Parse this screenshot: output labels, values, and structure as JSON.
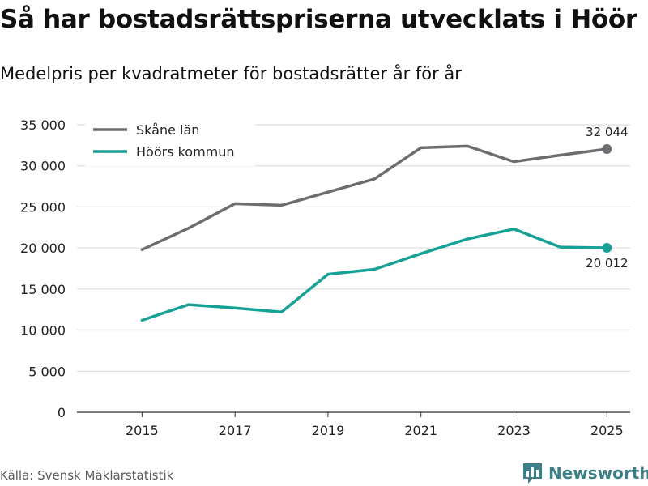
{
  "title": "Så har bostadsrättspriserna utvecklats i Höör",
  "subtitle": "Medelpris per kvadratmeter för bostadsrätter år för år",
  "source": "Källa: Svensk Mäklarstatistik",
  "brand": "Newsworthy",
  "chart_data": {
    "type": "line",
    "title": "Så har bostadsrättspriserna utvecklats i Höör",
    "subtitle": "Medelpris per kvadratmeter för bostadsrätter år för år",
    "xlabel": "",
    "ylabel": "",
    "x": [
      2015,
      2016,
      2017,
      2018,
      2019,
      2020,
      2021,
      2022,
      2023,
      2024,
      2025
    ],
    "xlim": [
      2013.6,
      2025.5
    ],
    "ylim": [
      0,
      35000
    ],
    "xticks": [
      2015,
      2017,
      2019,
      2021,
      2023,
      2025
    ],
    "xtick_labels": [
      "2015",
      "2017",
      "2019",
      "2021",
      "2023",
      "2025"
    ],
    "yticks": [
      0,
      5000,
      10000,
      15000,
      20000,
      25000,
      30000,
      35000
    ],
    "ytick_labels": [
      "0",
      "5 000",
      "10 000",
      "15 000",
      "20 000",
      "25 000",
      "30 000",
      "35 000"
    ],
    "grid": true,
    "legend_position": "top-left",
    "series": [
      {
        "name": "Skåne län",
        "color": "#6d6c70",
        "values": [
          19800,
          22400,
          25400,
          25200,
          26800,
          28400,
          32200,
          32400,
          30500,
          31300,
          32044
        ],
        "end_label": "32 044"
      },
      {
        "name": "Höörs kommun",
        "color": "#16a196",
        "values": [
          11200,
          13100,
          12700,
          12200,
          16800,
          17400,
          19300,
          21100,
          22300,
          20100,
          20012
        ],
        "end_label": "20 012"
      }
    ]
  }
}
